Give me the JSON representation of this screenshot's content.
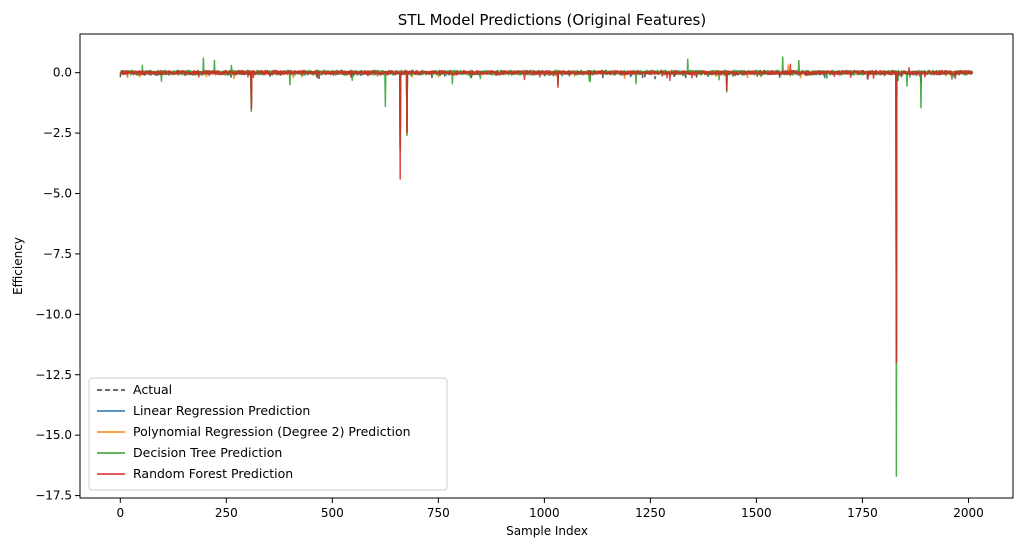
{
  "chart_data": {
    "type": "line",
    "title": "STL Model Predictions (Original Features)",
    "xlabel": "Sample Index",
    "ylabel": "Efficiency",
    "xlim": [
      -95,
      2105
    ],
    "ylim": [
      -17.6,
      1.6
    ],
    "xticks": [
      0,
      250,
      500,
      750,
      1000,
      1250,
      1500,
      1750,
      2000
    ],
    "xtick_labels": [
      "0",
      "250",
      "500",
      "750",
      "1000",
      "1250",
      "1500",
      "1750",
      "2000"
    ],
    "yticks": [
      0.0,
      -2.5,
      -5.0,
      -7.5,
      -10.0,
      -12.5,
      -15.0,
      -17.5
    ],
    "ytick_labels": [
      "0.0",
      "−2.5",
      "−5.0",
      "−7.5",
      "−10.0",
      "−12.5",
      "−15.0",
      "−17.5"
    ],
    "grid": false,
    "legend_position": "lower-left",
    "n_samples": 2010,
    "series": [
      {
        "name": "Actual",
        "color": "#3a3a3a",
        "dash": "dashed",
        "baseline_noise": 0.06,
        "spikes": [
          [
            309,
            -1.5
          ],
          [
            660,
            -3.0
          ],
          [
            676,
            -2.5
          ],
          [
            1830,
            -12.0
          ],
          [
            1888,
            -0.4
          ]
        ]
      },
      {
        "name": "Linear Regression Prediction",
        "color": "#1f77b4",
        "dash": "solid",
        "baseline_noise": 0.05,
        "spikes": [
          [
            309,
            -1.3
          ],
          [
            660,
            -2.8
          ],
          [
            676,
            -2.3
          ],
          [
            1830,
            -11.5
          ]
        ]
      },
      {
        "name": "Polynomial Regression (Degree 2) Prediction",
        "color": "#ff7f0e",
        "dash": "solid",
        "baseline_noise": 0.05,
        "spikes": [
          [
            309,
            -1.4
          ],
          [
            660,
            -2.9
          ],
          [
            676,
            -2.4
          ],
          [
            1830,
            -11.8
          ],
          [
            1575,
            0.3
          ]
        ]
      },
      {
        "name": "Decision Tree Prediction",
        "color": "#2ca02c",
        "dash": "solid",
        "baseline_noise": 0.1,
        "spikes": [
          [
            52,
            0.3
          ],
          [
            196,
            0.6
          ],
          [
            222,
            0.5
          ],
          [
            262,
            0.3
          ],
          [
            309,
            -1.6
          ],
          [
            400,
            -0.5
          ],
          [
            625,
            -1.4
          ],
          [
            660,
            -3.2
          ],
          [
            676,
            -2.6
          ],
          [
            1032,
            -0.5
          ],
          [
            1338,
            0.55
          ],
          [
            1430,
            -0.8
          ],
          [
            1562,
            0.65
          ],
          [
            1600,
            0.5
          ],
          [
            1830,
            -16.7
          ],
          [
            1855,
            -0.55
          ],
          [
            1888,
            -1.45
          ]
        ]
      },
      {
        "name": "Random Forest Prediction",
        "color": "#d62728",
        "dash": "solid",
        "baseline_noise": 0.08,
        "spikes": [
          [
            309,
            -1.5
          ],
          [
            660,
            -4.4
          ],
          [
            676,
            -2.5
          ],
          [
            1032,
            -0.6
          ],
          [
            1430,
            -0.75
          ],
          [
            1580,
            0.35
          ],
          [
            1830,
            -12.0
          ],
          [
            1860,
            0.2
          ]
        ]
      }
    ]
  }
}
